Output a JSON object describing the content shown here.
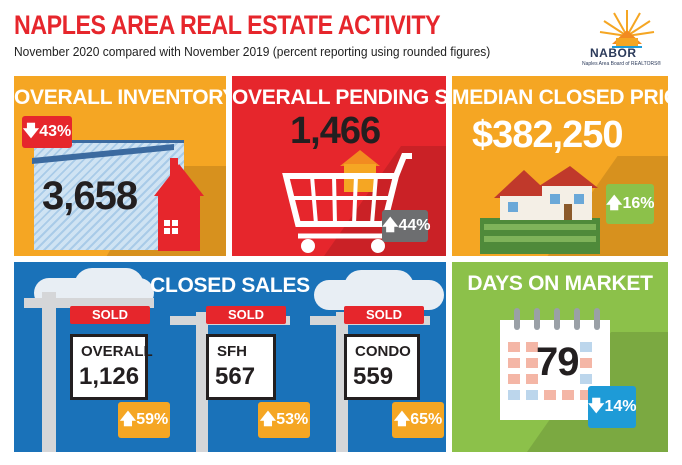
{
  "header": {
    "title": "NAPLES AREA REAL ESTATE ACTIVITY",
    "subtitle": "November 2020 compared with November 2019 (percent reporting using rounded figures)"
  },
  "logo": {
    "name": "NABOR",
    "tagline": "Naples Area Board of REALTORS®"
  },
  "overall_inventory": {
    "title": "OVERALL INVENTORY",
    "value": "3,658",
    "change": "43%",
    "direction": "down",
    "change_color": "#e6262c"
  },
  "overall_pending_sales": {
    "title": "OVERALL PENDING SALES",
    "value": "1,466",
    "change": "44%",
    "direction": "up",
    "change_color": "#6d6e70"
  },
  "median_closed_price": {
    "title": "MEDIAN CLOSED PRICE",
    "value": "$382,250",
    "change": "16%",
    "direction": "up",
    "change_color": "#8cc14a"
  },
  "closed_sales": {
    "title": "CLOSED SALES",
    "signs": [
      {
        "tag": "SOLD",
        "label": "OVERALL",
        "value": "1,126",
        "change": "59%",
        "direction": "up"
      },
      {
        "tag": "SOLD",
        "label": "SFH",
        "value": "567",
        "change": "53%",
        "direction": "up"
      },
      {
        "tag": "SOLD",
        "label": "CONDO",
        "value": "559",
        "change": "65%",
        "direction": "up"
      }
    ],
    "change_color": "#f5a623"
  },
  "days_on_market": {
    "title": "DAYS ON MARKET",
    "value": "79",
    "change": "14%",
    "direction": "down",
    "change_color": "#1e9bd7"
  },
  "colors": {
    "red": "#e6262c",
    "orange": "#f5a623",
    "blue": "#1a72b9",
    "green": "#8cc14a"
  },
  "icons": {
    "down": "down-arrow-icon",
    "up": "up-arrow-icon"
  }
}
